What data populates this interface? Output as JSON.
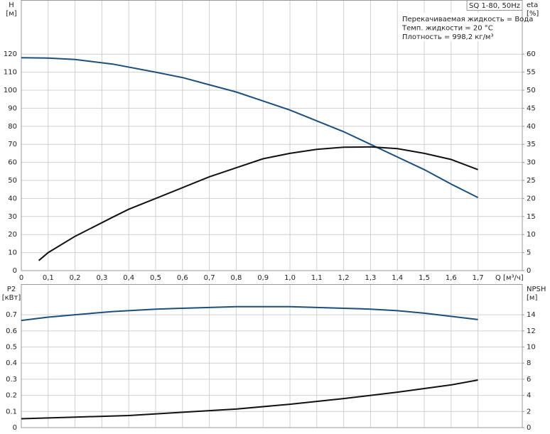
{
  "chart_data": [
    {
      "type": "line",
      "title": "SQ 1-80, 50Hz",
      "annotations": [
        "Перекачиваемая жидкость = Вода",
        "Темп. жидкости = 20 °C",
        "Плотность = 998,2 кг/м³"
      ],
      "y_label": [
        "H",
        "[м]"
      ],
      "y2_label": [
        "eta",
        "[%]"
      ],
      "x_label": "Q [м³/ч]",
      "xlim": [
        0,
        1.865
      ],
      "xticks": [
        0,
        {
          "value": 0.1,
          "label": "0,1"
        },
        {
          "value": 0.2,
          "label": "0,2"
        },
        {
          "value": 0.3,
          "label": "0,3"
        },
        {
          "value": 0.4,
          "label": "0,4"
        },
        {
          "value": 0.5,
          "label": "0,5"
        },
        {
          "value": 0.6,
          "label": "0,6"
        },
        {
          "value": 0.7,
          "label": "0,7"
        },
        {
          "value": 0.8,
          "label": "0,8"
        },
        {
          "value": 0.9,
          "label": "0,9"
        },
        {
          "value": 1.0,
          "label": "1,0"
        },
        {
          "value": 1.1,
          "label": "1,1"
        },
        {
          "value": 1.2,
          "label": "1,2"
        },
        {
          "value": 1.3,
          "label": "1,3"
        },
        {
          "value": 1.4,
          "label": "1,4"
        },
        {
          "value": 1.5,
          "label": "1,5"
        },
        {
          "value": 1.6,
          "label": "1,6"
        },
        {
          "value": 1.7,
          "label": "1,7"
        }
      ],
      "ylim": [
        0,
        150
      ],
      "yticks": [
        0,
        10,
        20,
        30,
        40,
        50,
        60,
        70,
        80,
        90,
        100,
        110,
        120
      ],
      "y2lim": [
        0,
        75
      ],
      "y2ticks": [
        0,
        5,
        10,
        15,
        20,
        25,
        30,
        35,
        40,
        45,
        50,
        55,
        60
      ],
      "grid": true,
      "series": [
        {
          "color": "#1c4f7c",
          "x": [
            0,
            0.1,
            0.2,
            0.34,
            0.5,
            0.6,
            0.7,
            0.8,
            0.9,
            1.0,
            1.1,
            1.2,
            1.3,
            1.4,
            1.5,
            1.6,
            1.7
          ],
          "values": [
            118,
            117.8,
            117,
            114.5,
            110,
            107,
            103,
            99,
            94,
            89,
            83,
            77,
            70,
            63,
            56,
            48,
            40.5
          ]
        },
        {
          "color": "#111111",
          "axis": "y2",
          "x": [
            0.065,
            0.1,
            0.2,
            0.34,
            0.4,
            0.5,
            0.6,
            0.7,
            0.8,
            0.9,
            1.0,
            1.1,
            1.2,
            1.3,
            1.4,
            1.5,
            1.6,
            1.7
          ],
          "values": [
            2.8,
            5,
            9.5,
            14.8,
            17,
            20,
            23,
            26,
            28.5,
            31,
            32.5,
            33.6,
            34.2,
            34.3,
            33.8,
            32.5,
            30.8,
            28
          ]
        }
      ]
    },
    {
      "type": "line",
      "y_label": [
        "P2",
        "[кВт]"
      ],
      "y2_label": [
        "NPSH",
        "[м]"
      ],
      "xlim": [
        0,
        1.865
      ],
      "xticks": [
        0,
        0.1,
        0.2,
        0.3,
        0.4,
        0.5,
        0.6,
        0.7,
        0.8,
        0.9,
        1.0,
        1.1,
        1.2,
        1.3,
        1.4,
        1.5,
        1.6,
        1.7
      ],
      "ylim": [
        0,
        0.89
      ],
      "yticks": [
        0,
        0.1,
        0.2,
        0.3,
        0.4,
        0.5,
        0.6,
        0.7
      ],
      "y2lim": [
        0,
        17.8
      ],
      "y2ticks": [
        0,
        2,
        4,
        6,
        8,
        10,
        12,
        14
      ],
      "grid": true,
      "series": [
        {
          "color": "#1c4f7c",
          "x": [
            0,
            0.1,
            0.2,
            0.34,
            0.5,
            0.6,
            0.7,
            0.8,
            0.9,
            1.0,
            1.1,
            1.2,
            1.3,
            1.4,
            1.5,
            1.6,
            1.7
          ],
          "values": [
            0.665,
            0.685,
            0.7,
            0.72,
            0.735,
            0.74,
            0.745,
            0.75,
            0.75,
            0.75,
            0.745,
            0.74,
            0.735,
            0.725,
            0.71,
            0.69,
            0.67
          ]
        },
        {
          "color": "#111111",
          "axis": "y2",
          "x": [
            0,
            0.2,
            0.4,
            0.6,
            0.8,
            1.0,
            1.2,
            1.4,
            1.6,
            1.7
          ],
          "values": [
            1.1,
            1.3,
            1.5,
            1.9,
            2.3,
            2.9,
            3.6,
            4.4,
            5.3,
            5.9
          ]
        }
      ]
    }
  ]
}
